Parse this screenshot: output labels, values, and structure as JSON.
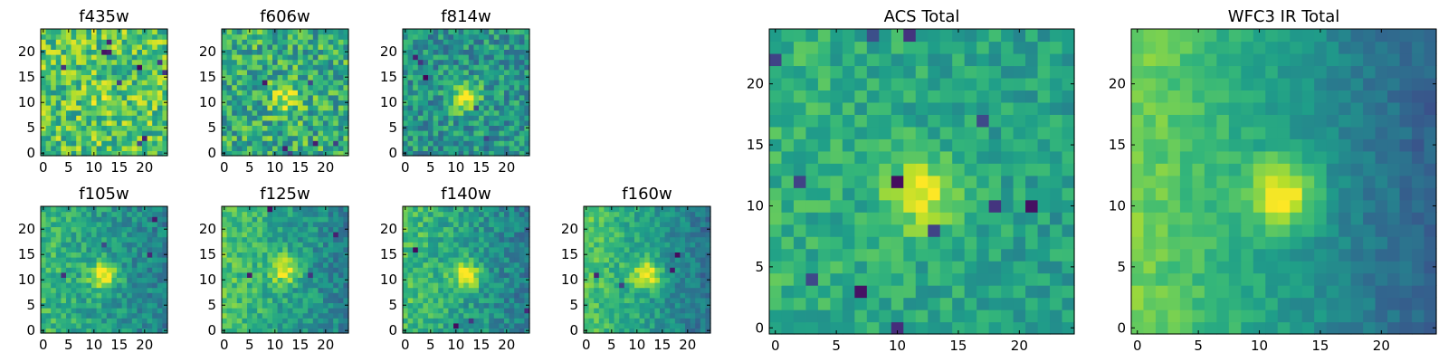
{
  "figure": {
    "colormap": "viridis",
    "colormap_stops": [
      "#440154",
      "#482878",
      "#3e4989",
      "#31688e",
      "#26828e",
      "#1f9e89",
      "#35b779",
      "#6ece58",
      "#b5de2b",
      "#fde725"
    ]
  },
  "chart_data": [
    {
      "type": "heatmap",
      "title": "f435w",
      "grid": [
        25,
        25
      ],
      "xlim": [
        0,
        24
      ],
      "ylim": [
        0,
        24
      ],
      "xticks": [
        0,
        5,
        10,
        15,
        20
      ],
      "yticks": [
        0,
        5,
        10,
        15,
        20
      ],
      "source_center": [
        12,
        11
      ],
      "source_strength": 0.08,
      "background_level": 0.72,
      "noise": 0.24,
      "edge_gradient": 0.0,
      "hot_pixels": 10,
      "seed": 11
    },
    {
      "type": "heatmap",
      "title": "f606w",
      "grid": [
        25,
        25
      ],
      "xlim": [
        0,
        24
      ],
      "ylim": [
        0,
        24
      ],
      "xticks": [
        0,
        5,
        10,
        15,
        20
      ],
      "yticks": [
        0,
        5,
        10,
        15,
        20
      ],
      "source_center": [
        12,
        11
      ],
      "source_strength": 0.35,
      "background_level": 0.62,
      "noise": 0.24,
      "edge_gradient": 0.0,
      "hot_pixels": 6,
      "seed": 23
    },
    {
      "type": "heatmap",
      "title": "f814w",
      "grid": [
        25,
        25
      ],
      "xlim": [
        0,
        24
      ],
      "ylim": [
        0,
        24
      ],
      "xticks": [
        0,
        5,
        10,
        15,
        20
      ],
      "yticks": [
        0,
        5,
        10,
        15,
        20
      ],
      "source_center": [
        12,
        11
      ],
      "source_strength": 0.5,
      "background_level": 0.52,
      "noise": 0.2,
      "edge_gradient": 0.0,
      "hot_pixels": 5,
      "seed": 37
    },
    {
      "type": "heatmap",
      "title": "f105w",
      "grid": [
        25,
        25
      ],
      "xlim": [
        0,
        24
      ],
      "ylim": [
        0,
        24
      ],
      "xticks": [
        0,
        5,
        10,
        15,
        20
      ],
      "yticks": [
        0,
        5,
        10,
        15,
        20
      ],
      "source_center": [
        12,
        11
      ],
      "source_strength": 0.45,
      "background_level": 0.55,
      "noise": 0.14,
      "edge_gradient": 0.3,
      "hot_pixels": 4,
      "seed": 41
    },
    {
      "type": "heatmap",
      "title": "f125w",
      "grid": [
        25,
        25
      ],
      "xlim": [
        0,
        24
      ],
      "ylim": [
        0,
        24
      ],
      "xticks": [
        0,
        5,
        10,
        15,
        20
      ],
      "yticks": [
        0,
        5,
        10,
        15,
        20
      ],
      "source_center": [
        12,
        12
      ],
      "source_strength": 0.4,
      "background_level": 0.58,
      "noise": 0.14,
      "edge_gradient": 0.35,
      "hot_pixels": 4,
      "seed": 53
    },
    {
      "type": "heatmap",
      "title": "f140w",
      "grid": [
        25,
        25
      ],
      "xlim": [
        0,
        24
      ],
      "ylim": [
        0,
        24
      ],
      "xticks": [
        0,
        5,
        10,
        15,
        20
      ],
      "yticks": [
        0,
        5,
        10,
        15,
        20
      ],
      "source_center": [
        12,
        11
      ],
      "source_strength": 0.45,
      "background_level": 0.56,
      "noise": 0.14,
      "edge_gradient": 0.35,
      "hot_pixels": 4,
      "seed": 67
    },
    {
      "type": "heatmap",
      "title": "f160w",
      "grid": [
        25,
        25
      ],
      "xlim": [
        0,
        24
      ],
      "ylim": [
        0,
        24
      ],
      "xticks": [
        0,
        5,
        10,
        15,
        20
      ],
      "yticks": [
        0,
        5,
        10,
        15,
        20
      ],
      "source_center": [
        12,
        11
      ],
      "source_strength": 0.45,
      "background_level": 0.56,
      "noise": 0.12,
      "edge_gradient": 0.45,
      "hot_pixels": 4,
      "seed": 79
    },
    {
      "type": "heatmap",
      "title": "ACS Total",
      "grid": [
        25,
        25
      ],
      "xlim": [
        0,
        24
      ],
      "ylim": [
        0,
        24
      ],
      "xticks": [
        0,
        5,
        10,
        15,
        20
      ],
      "yticks": [
        0,
        5,
        10,
        15,
        20
      ],
      "source_center": [
        12,
        11
      ],
      "source_strength": 0.4,
      "background_level": 0.6,
      "noise": 0.12,
      "edge_gradient": 0.1,
      "hot_pixels": 12,
      "seed": 97
    },
    {
      "type": "heatmap",
      "title": "WFC3 IR Total",
      "grid": [
        25,
        25
      ],
      "xlim": [
        0,
        24
      ],
      "ylim": [
        0,
        24
      ],
      "xticks": [
        0,
        5,
        10,
        15,
        20
      ],
      "yticks": [
        0,
        5,
        10,
        15,
        20
      ],
      "source_center": [
        12,
        11
      ],
      "source_strength": 0.45,
      "background_level": 0.55,
      "noise": 0.07,
      "edge_gradient": 0.6,
      "hot_pixels": 0,
      "seed": 113
    }
  ]
}
